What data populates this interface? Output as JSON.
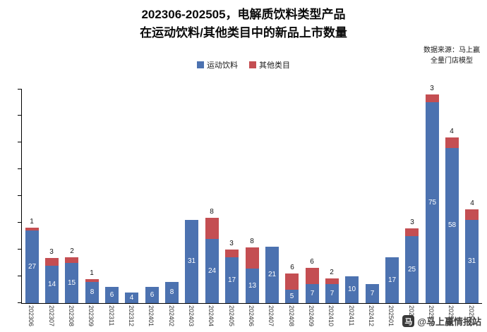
{
  "title": {
    "line1": "202306-202505，电解质饮料类型产品",
    "line2": "在运动饮料/其他类目中的新品上市数量"
  },
  "source": {
    "line1": "数据来源：马上赢",
    "line2": "全量门店模型"
  },
  "legend": [
    {
      "label": "运动饮料",
      "color": "#4C72B0"
    },
    {
      "label": "其他类目",
      "color": "#C44E52"
    }
  ],
  "watermark": {
    "logo_text": "马",
    "text": "@马上赢情报站"
  },
  "chart_data": {
    "type": "bar",
    "stacked": true,
    "title": "202306-202505，电解质饮料类型产品在运动饮料/其他类目中的新品上市数量",
    "xlabel": "",
    "ylabel": "",
    "ylim": [
      0,
      80
    ],
    "y_tick_interval": 10,
    "grid": false,
    "legend_position": "top",
    "categories": [
      "202306",
      "202307",
      "202308",
      "202309",
      "202311",
      "202312",
      "202401",
      "202402",
      "202403",
      "202404",
      "202405",
      "202406",
      "202407",
      "202408",
      "202409",
      "202410",
      "202411",
      "202412",
      "202501",
      "202502",
      "202503",
      "202504",
      "202505"
    ],
    "series": [
      {
        "name": "运动饮料",
        "color": "#4C72B0",
        "values": [
          27,
          14,
          15,
          8,
          6,
          4,
          6,
          8,
          31,
          24,
          17,
          13,
          21,
          5,
          7,
          7,
          10,
          7,
          17,
          25,
          75,
          58,
          31
        ]
      },
      {
        "name": "其他类目",
        "color": "#C44E52",
        "values": [
          1,
          3,
          2,
          1,
          0,
          0,
          0,
          0,
          0,
          8,
          3,
          8,
          0,
          6,
          6,
          2,
          0,
          0,
          0,
          3,
          3,
          4,
          4
        ]
      }
    ],
    "bar_value_labels": "blue values shown in white inside bars; red segment value shown in black above bar when > 0"
  }
}
